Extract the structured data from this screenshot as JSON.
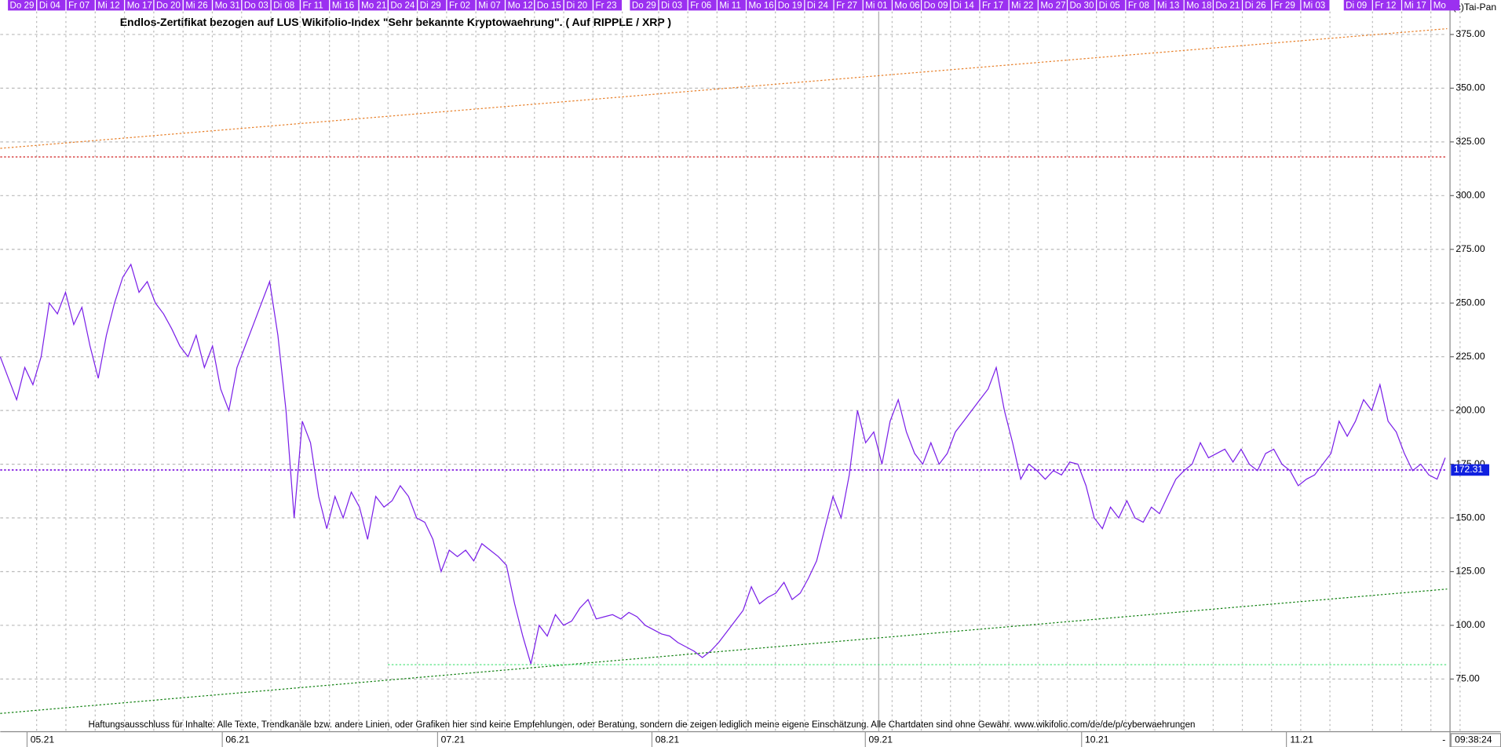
{
  "chart_data": {
    "type": "line",
    "title": "Endlos-Zertifikat bezogen auf LUS Wikifolio-Index \"Sehr bekannte Kryptowaehrung\". ( Auf RIPPLE / XRP )",
    "copyright": "(c)Tai-Pan",
    "disclaimer": "Haftungsausschluss für Inhalte: Alle Texte, Trendkanäle bzw. andere Linien, oder Grafiken hier sind keine Empfehlungen, oder Beratung, sondern die zeigen lediglich meine eigene Einschätzung. Alle Chartdaten sind ohne Gewähr.  www.wikifolio.com/de/de/p/cyberwaehrungen",
    "time": "09:38:24",
    "date_labels": [
      "Do 29",
      "Di 04",
      "Fr 07",
      "Mi 12",
      "Mo 17",
      "Do 20",
      "Mi 26",
      "Mo 31",
      "Do 03",
      "Di 08",
      "Fr 11",
      "Mi 16",
      "Mo 21",
      "Do 24",
      "Di 29",
      "Fr 02",
      "Mi 07",
      "Mo 12",
      "Do 15",
      "Di 20",
      "Fr 23",
      "Do 29",
      "Di 03",
      "Fr 06",
      "Mi 11",
      "Mo 16",
      "Do 19",
      "Di 24",
      "Fr 27",
      "Mi 01",
      "Mo 06",
      "Do 09",
      "Di 14",
      "Fr 17",
      "Mi 22",
      "Mo 27",
      "Do 30",
      "Di 05",
      "Fr 08",
      "Mi 13",
      "Mo 18",
      "Do 21",
      "Di 26",
      "Fr 29",
      "Mi 03",
      "Di 09",
      "Fr 12",
      "Mi 17",
      "Mo"
    ],
    "month_labels": [
      "05.21",
      "06.21",
      "07.21",
      "08.21",
      "09.21",
      "10.21",
      "11.21"
    ],
    "ylim": [
      50.5,
      385.7
    ],
    "yticks": [
      {
        "value": 75,
        "label": "75.00"
      },
      {
        "value": 100,
        "label": "100.00"
      },
      {
        "value": 125,
        "label": "125.00"
      },
      {
        "value": 150,
        "label": "150.00"
      },
      {
        "value": 175,
        "label": "175.00"
      },
      {
        "value": 200,
        "label": "200.00"
      },
      {
        "value": 225,
        "label": "225.00"
      },
      {
        "value": 250,
        "label": "250.00"
      },
      {
        "value": 275,
        "label": "275.00"
      },
      {
        "value": 300,
        "label": "300.00"
      },
      {
        "value": 325,
        "label": "325.00"
      },
      {
        "value": 350,
        "label": "350.00"
      },
      {
        "value": 375,
        "label": "375.00"
      }
    ],
    "grid": true,
    "last_price": 172.31,
    "series": [
      {
        "color": "#7a1fe8",
        "values": [
          225,
          215,
          205,
          220,
          212,
          225,
          250,
          245,
          255,
          240,
          248,
          230,
          215,
          235,
          250,
          262,
          268,
          255,
          260,
          250,
          245,
          238,
          230,
          225,
          235,
          220,
          230,
          210,
          200,
          220,
          230,
          240,
          250,
          260,
          235,
          200,
          150,
          195,
          185,
          160,
          145,
          160,
          150,
          162,
          155,
          140,
          160,
          155,
          158,
          165,
          160,
          150,
          148,
          140,
          125,
          135,
          132,
          135,
          130,
          138,
          135,
          132,
          128,
          110,
          95,
          82,
          100,
          95,
          105,
          100,
          102,
          108,
          112,
          103,
          104,
          105,
          103,
          106,
          104,
          100,
          98,
          96,
          95,
          92,
          90,
          88,
          85,
          88,
          92,
          97,
          102,
          107,
          118,
          110,
          113,
          115,
          120,
          112,
          115,
          122,
          130,
          145,
          160,
          150,
          170,
          200,
          185,
          190,
          175,
          195,
          205,
          190,
          180,
          175,
          185,
          175,
          180,
          190,
          195,
          200,
          205,
          210,
          220,
          200,
          185,
          168,
          175,
          172,
          168,
          172,
          170,
          176,
          175,
          165,
          150,
          145,
          155,
          150,
          158,
          150,
          148,
          155,
          152,
          160,
          168,
          172,
          175,
          185,
          178,
          180,
          182,
          176,
          182,
          175,
          172,
          180,
          182,
          175,
          172,
          165,
          168,
          170,
          175,
          180,
          195,
          188,
          195,
          205,
          200,
          212,
          195,
          190,
          180,
          172,
          175,
          170,
          168,
          178
        ]
      }
    ],
    "trend_lines": [
      {
        "color": "#e8802a",
        "values": [
          322.0,
          377.7
        ]
      },
      {
        "color": "#d02020",
        "values": [
          318.0,
          318.0
        ]
      },
      {
        "color": "#108010",
        "values": [
          59.0,
          116.9
        ]
      },
      {
        "color": "#40e070",
        "values": [
          81.7,
          81.7
        ]
      },
      {
        "color": "#8a2be2",
        "values": [
          172.31,
          172.31
        ]
      }
    ]
  }
}
